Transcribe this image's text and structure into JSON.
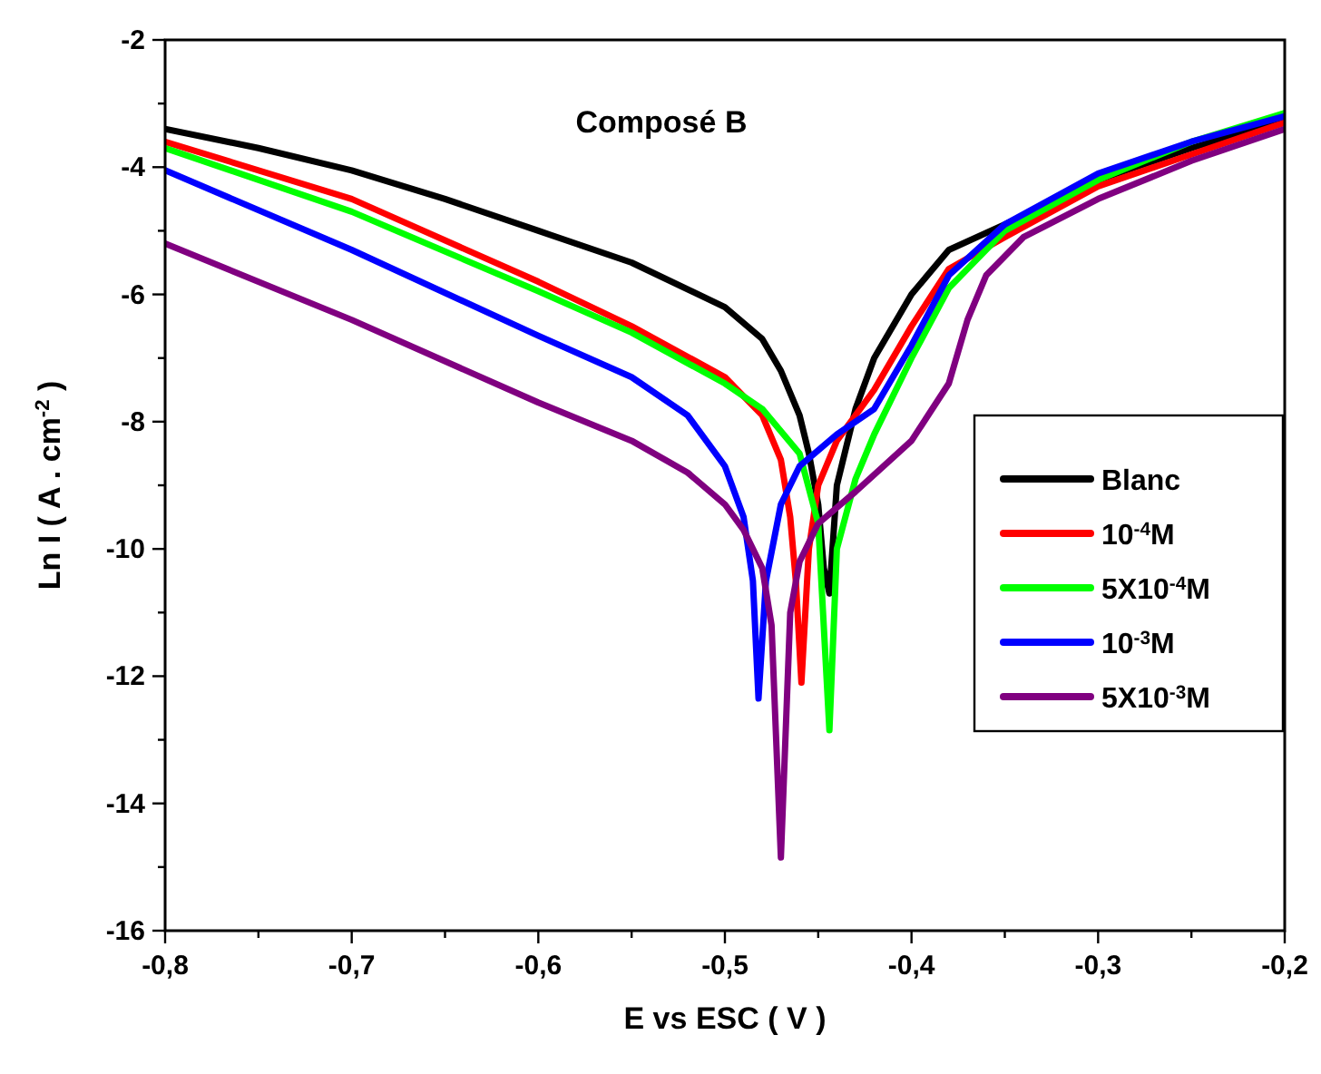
{
  "chart_data": {
    "type": "line",
    "title": "Composé B",
    "xlabel": "E vs ESC ( V )",
    "ylabel": "Ln I ( A . cm$^{-2}$ )",
    "xlim": [
      -0.8,
      -0.2
    ],
    "ylim": [
      -16,
      -2
    ],
    "xticks": [
      {
        "value": -0.8,
        "label": "-0,8"
      },
      {
        "value": -0.75,
        "label": null
      },
      {
        "value": -0.7,
        "label": "-0,7"
      },
      {
        "value": -0.65,
        "label": null
      },
      {
        "value": -0.6,
        "label": "-0,6"
      },
      {
        "value": -0.55,
        "label": null
      },
      {
        "value": -0.5,
        "label": "-0,5"
      },
      {
        "value": -0.45,
        "label": null
      },
      {
        "value": -0.4,
        "label": "-0,4"
      },
      {
        "value": -0.35,
        "label": null
      },
      {
        "value": -0.3,
        "label": "-0,3"
      },
      {
        "value": -0.25,
        "label": null
      },
      {
        "value": -0.2,
        "label": "-0,2"
      }
    ],
    "yticks": [
      -16,
      {
        "value": -15,
        "label": null
      },
      -14,
      {
        "value": -13,
        "label": null
      },
      -12,
      {
        "value": -11,
        "label": null
      },
      -10,
      {
        "value": -9,
        "label": null
      },
      -8,
      {
        "value": -7,
        "label": null
      },
      -6,
      {
        "value": -5,
        "label": null
      },
      -4,
      {
        "value": -3,
        "label": null
      },
      -2
    ],
    "grid": false,
    "legend": "right",
    "marker": "none",
    "line_style": "solid",
    "series": [
      {
        "name": "Blanc",
        "color": "#000000",
        "x": [
          -0.8,
          -0.75,
          -0.7,
          -0.65,
          -0.6,
          -0.55,
          -0.5,
          -0.48,
          -0.47,
          -0.46,
          -0.455,
          -0.45,
          -0.447,
          -0.444,
          -0.44,
          -0.43,
          -0.42,
          -0.4,
          -0.38,
          -0.35,
          -0.3,
          -0.25,
          -0.2
        ],
        "values": [
          -3.4,
          -3.7,
          -4.05,
          -4.5,
          -5.0,
          -5.5,
          -6.2,
          -6.7,
          -7.2,
          -7.9,
          -8.5,
          -9.3,
          -10.3,
          -10.7,
          -9.0,
          -7.8,
          -7.0,
          -6.0,
          -5.3,
          -4.9,
          -4.2,
          -3.7,
          -3.25
        ]
      },
      {
        "name": "10$^{-4}$M",
        "color": "#ff0000",
        "x": [
          -0.8,
          -0.7,
          -0.6,
          -0.55,
          -0.5,
          -0.48,
          -0.47,
          -0.465,
          -0.462,
          -0.459,
          -0.455,
          -0.45,
          -0.44,
          -0.42,
          -0.4,
          -0.38,
          -0.35,
          -0.3,
          -0.25,
          -0.2
        ],
        "values": [
          -3.6,
          -4.5,
          -5.8,
          -6.5,
          -7.3,
          -7.9,
          -8.6,
          -9.5,
          -10.5,
          -12.1,
          -10.0,
          -9.0,
          -8.3,
          -7.5,
          -6.5,
          -5.6,
          -5.1,
          -4.3,
          -3.8,
          -3.3
        ]
      },
      {
        "name": "5X10$^{-4}$M",
        "color": "#00ff00",
        "x": [
          -0.8,
          -0.7,
          -0.6,
          -0.55,
          -0.5,
          -0.48,
          -0.46,
          -0.45,
          -0.444,
          -0.44,
          -0.43,
          -0.42,
          -0.4,
          -0.38,
          -0.35,
          -0.3,
          -0.25,
          -0.2
        ],
        "values": [
          -3.7,
          -4.7,
          -5.95,
          -6.6,
          -7.4,
          -7.8,
          -8.5,
          -9.6,
          -12.85,
          -10.0,
          -8.9,
          -8.2,
          -7.0,
          -5.9,
          -5.0,
          -4.2,
          -3.6,
          -3.15
        ]
      },
      {
        "name": "10$^{-3}$M",
        "color": "#0000ff",
        "x": [
          -0.8,
          -0.7,
          -0.6,
          -0.55,
          -0.52,
          -0.5,
          -0.49,
          -0.485,
          -0.482,
          -0.478,
          -0.47,
          -0.46,
          -0.44,
          -0.42,
          -0.4,
          -0.38,
          -0.35,
          -0.3,
          -0.25,
          -0.2
        ],
        "values": [
          -4.05,
          -5.3,
          -6.65,
          -7.3,
          -7.9,
          -8.7,
          -9.5,
          -10.5,
          -12.35,
          -10.5,
          -9.3,
          -8.7,
          -8.2,
          -7.8,
          -6.8,
          -5.7,
          -4.9,
          -4.1,
          -3.6,
          -3.2
        ]
      },
      {
        "name": "5X10$^{-3}$M",
        "color": "#800080",
        "x": [
          -0.8,
          -0.7,
          -0.6,
          -0.55,
          -0.52,
          -0.5,
          -0.49,
          -0.48,
          -0.475,
          -0.47,
          -0.465,
          -0.46,
          -0.45,
          -0.43,
          -0.4,
          -0.38,
          -0.37,
          -0.36,
          -0.34,
          -0.3,
          -0.25,
          -0.2
        ],
        "values": [
          -5.2,
          -6.4,
          -7.7,
          -8.3,
          -8.8,
          -9.3,
          -9.7,
          -10.3,
          -11.2,
          -14.85,
          -11.0,
          -10.2,
          -9.6,
          -9.1,
          -8.3,
          -7.4,
          -6.4,
          -5.7,
          -5.1,
          -4.5,
          -3.9,
          -3.4
        ]
      }
    ]
  }
}
